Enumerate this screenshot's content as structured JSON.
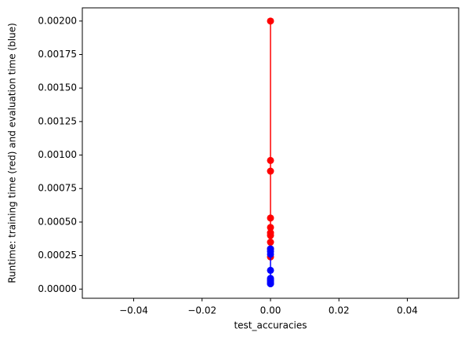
{
  "chart_data": {
    "type": "line",
    "xlabel": "test_accuracies",
    "ylabel": "Runtime: training time (red) and evaluation time (blue)",
    "x": [
      0,
      0,
      0,
      0,
      0,
      0,
      0,
      0,
      0,
      0
    ],
    "series": [
      {
        "color": "#ff0000",
        "values": [
          0.002,
          0.00096,
          0.00088,
          0.00053,
          0.00046,
          0.00042,
          0.0004,
          0.00035,
          0.0003,
          0.00024
        ]
      },
      {
        "color": "#0000ff",
        "values": [
          0.0003,
          0.00028,
          0.00026,
          0.00014,
          8e-05,
          7e-05,
          6e-05,
          5e-05,
          4e-05,
          4e-05
        ]
      }
    ],
    "xlim": [
      -0.055,
      0.055
    ],
    "xticks": [
      {
        "value": -0.04,
        "label": "−0.04"
      },
      {
        "value": -0.02,
        "label": "−0.02"
      },
      {
        "value": 0,
        "label": "0.00"
      },
      {
        "value": 0.02,
        "label": "0.02"
      },
      {
        "value": 0.04,
        "label": "0.04"
      }
    ],
    "ylim": [
      -6.85e-05,
      0.0020985
    ],
    "yticks": [
      {
        "value": 0,
        "label": "0.00000"
      },
      {
        "value": 0.00025,
        "label": "0.00025"
      },
      {
        "value": 0.0005,
        "label": "0.00050"
      },
      {
        "value": 0.00075,
        "label": "0.00075"
      },
      {
        "value": 0.001,
        "label": "0.00100"
      },
      {
        "value": 0.00125,
        "label": "0.00125"
      },
      {
        "value": 0.0015,
        "label": "0.00150"
      },
      {
        "value": 0.00175,
        "label": "0.00175"
      },
      {
        "value": 0.002,
        "label": "0.00200"
      }
    ]
  }
}
